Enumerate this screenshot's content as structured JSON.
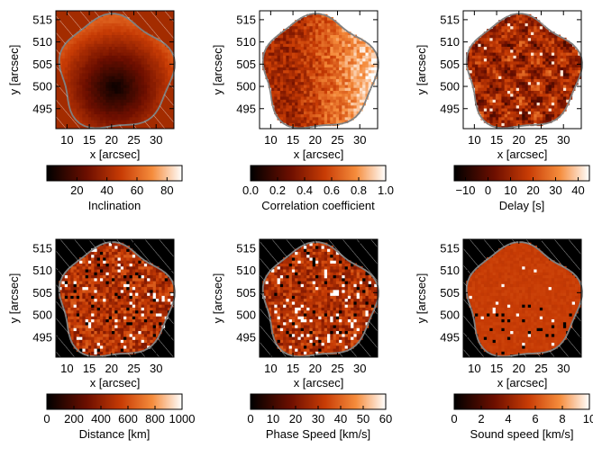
{
  "chart_data": [
    {
      "type": "heatmap",
      "title": "",
      "xlabel": "x [arcsec]",
      "ylabel": "y [arcsec]",
      "xlim": [
        7.5,
        34
      ],
      "ylim": [
        490.5,
        517
      ],
      "xticks": [
        "10",
        "15",
        "20",
        "25",
        "30"
      ],
      "yticks": [
        "495",
        "500",
        "505",
        "510",
        "515"
      ],
      "colorbar": {
        "label": "Inclination",
        "range": [
          0,
          90
        ],
        "ticks": [
          "20",
          "40",
          "60",
          "80"
        ]
      },
      "colormap": "dark-red-to-white",
      "pattern": "radial",
      "center": [
        20.5,
        499.5
      ],
      "spread": 15,
      "outside_hatched": true
    },
    {
      "type": "heatmap",
      "title": "",
      "xlabel": "x [arcsec]",
      "ylabel": "y [arcsec]",
      "xlim": [
        7.5,
        34
      ],
      "ylim": [
        490.5,
        517
      ],
      "xticks": [
        "10",
        "15",
        "20",
        "25",
        "30"
      ],
      "yticks": [
        "495",
        "500",
        "505",
        "510",
        "515"
      ],
      "colorbar": {
        "label": "Correlation coefficient",
        "range": [
          0.0,
          1.0
        ],
        "ticks": [
          "0.0",
          "0.2",
          "0.4",
          "0.6",
          "0.8",
          "1.0"
        ]
      },
      "colormap": "dark-red-to-white",
      "pattern": "east-high",
      "outside_hatched": true
    },
    {
      "type": "heatmap",
      "title": "",
      "xlabel": "x [arcsec]",
      "ylabel": "y [arcsec]",
      "xlim": [
        7.5,
        34
      ],
      "ylim": [
        490.5,
        517
      ],
      "xticks": [
        "10",
        "15",
        "20",
        "25",
        "30"
      ],
      "yticks": [
        "495",
        "500",
        "505",
        "510",
        "515"
      ],
      "colorbar": {
        "label": "Delay [s]",
        "range": [
          -15,
          45
        ],
        "ticks": [
          "−10",
          "0",
          "10",
          "20",
          "30",
          "40"
        ]
      },
      "colormap": "dark-red-to-white",
      "pattern": "noisy",
      "outside_hatched": true
    },
    {
      "type": "heatmap",
      "title": "",
      "xlabel": "x [arcsec]",
      "ylabel": "y [arcsec]",
      "xlim": [
        7.5,
        34
      ],
      "ylim": [
        490.5,
        517
      ],
      "xticks": [
        "10",
        "15",
        "20",
        "25",
        "30"
      ],
      "yticks": [
        "495",
        "500",
        "505",
        "510",
        "515"
      ],
      "colorbar": {
        "label": "Distance [km]",
        "range": [
          0,
          1000
        ],
        "ticks": [
          "0",
          "200",
          "400",
          "600",
          "800",
          "1000"
        ]
      },
      "colormap": "dark-red-to-white",
      "pattern": "noisy-speckled",
      "outside_hatched": true
    },
    {
      "type": "heatmap",
      "title": "",
      "xlabel": "x [arcsec]",
      "ylabel": "y [arcsec]",
      "xlim": [
        7.5,
        34
      ],
      "ylim": [
        490.5,
        517
      ],
      "xticks": [
        "10",
        "15",
        "20",
        "25",
        "30"
      ],
      "yticks": [
        "495",
        "500",
        "505",
        "510",
        "515"
      ],
      "colorbar": {
        "label": "Phase Speed [km/s]",
        "range": [
          0,
          60
        ],
        "ticks": [
          "0",
          "10",
          "20",
          "30",
          "40",
          "50",
          "60"
        ]
      },
      "colormap": "dark-red-to-white",
      "pattern": "noisy-speckled",
      "outside_hatched": true
    },
    {
      "type": "heatmap",
      "title": "",
      "xlabel": "x [arcsec]",
      "ylabel": "y [arcsec]",
      "xlim": [
        7.5,
        34
      ],
      "ylim": [
        490.5,
        517
      ],
      "xticks": [
        "10",
        "15",
        "20",
        "25",
        "30"
      ],
      "yticks": [
        "495",
        "500",
        "505",
        "510",
        "515"
      ],
      "colorbar": {
        "label": "Sound speed [km/s]",
        "range": [
          0,
          10
        ],
        "ticks": [
          "0",
          "2",
          "4",
          "6",
          "8",
          "10"
        ]
      },
      "colormap": "dark-red-to-white",
      "pattern": "uniform-with-black-dots",
      "outside_hatched": true
    }
  ]
}
